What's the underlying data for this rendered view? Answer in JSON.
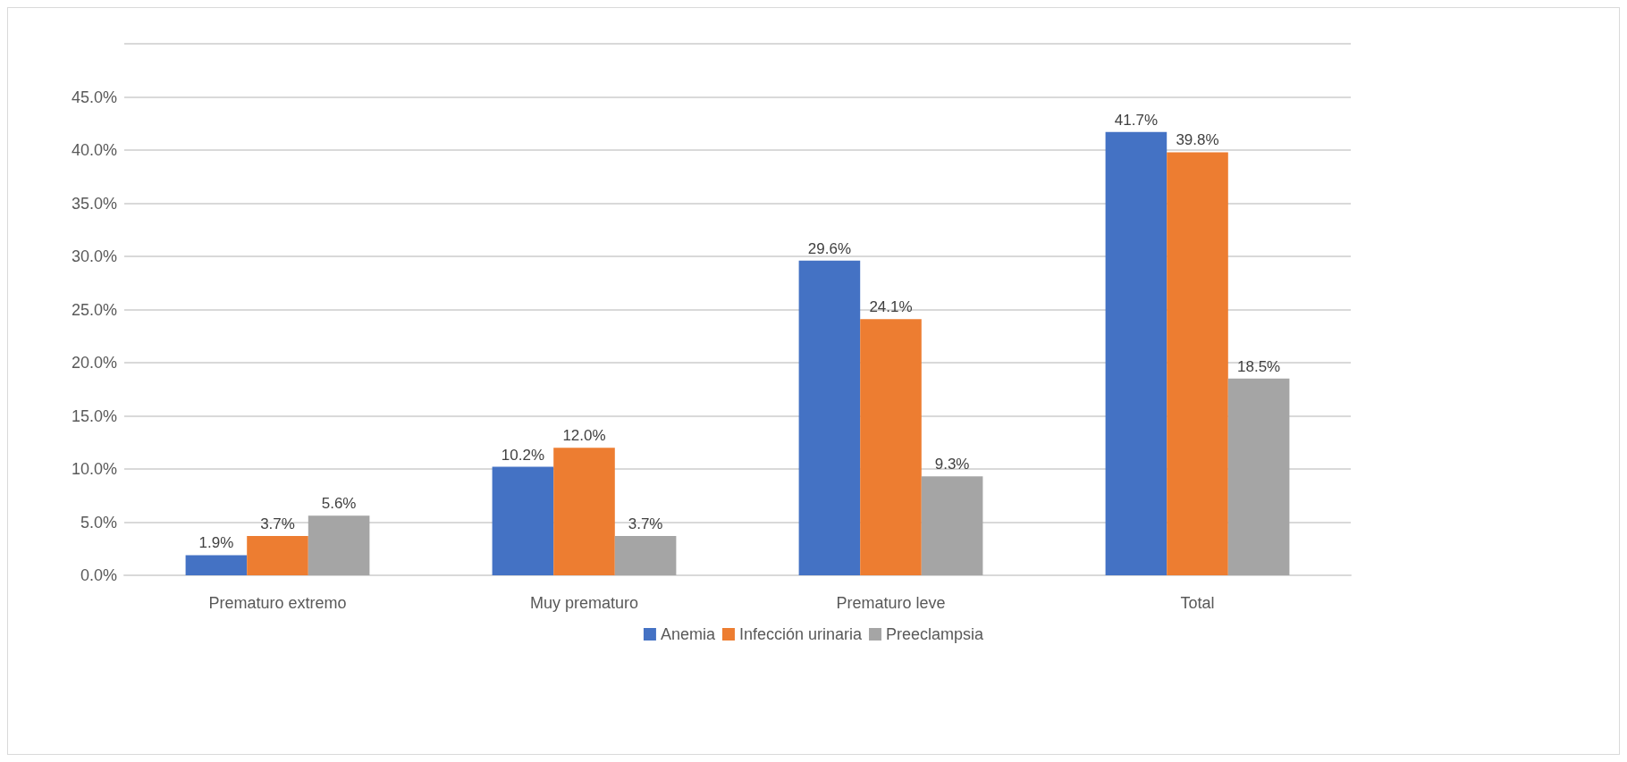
{
  "chart_data": {
    "type": "bar",
    "categories": [
      "Prematuro extremo",
      "Muy prematuro",
      "Prematuro leve",
      "Total"
    ],
    "series": [
      {
        "name": "Anemia",
        "color": "#4472c4",
        "values": [
          1.9,
          10.2,
          29.6,
          41.7
        ],
        "value_labels": [
          "1.9%",
          "10.2%",
          "29.6%",
          "41.7%"
        ]
      },
      {
        "name": "Infección urinaria",
        "color": "#ed7d31",
        "values": [
          3.7,
          12.0,
          24.1,
          39.8
        ],
        "value_labels": [
          "3.7%",
          "12.0%",
          "24.1%",
          "39.8%"
        ]
      },
      {
        "name": "Preeclampsia",
        "color": "#a5a5a5",
        "values": [
          5.6,
          3.7,
          9.3,
          18.5
        ],
        "value_labels": [
          "5.6%",
          "3.7%",
          "9.3%",
          "18.5%"
        ]
      }
    ],
    "ylim": [
      0,
      50
    ],
    "yticks": [
      {
        "value": 0,
        "label": "0.0%"
      },
      {
        "value": 5,
        "label": "5.0%"
      },
      {
        "value": 10,
        "label": "10.0%"
      },
      {
        "value": 15,
        "label": "15.0%"
      },
      {
        "value": 20,
        "label": "20.0%"
      },
      {
        "value": 25,
        "label": "25.0%"
      },
      {
        "value": 30,
        "label": "30.0%"
      },
      {
        "value": 35,
        "label": "35.0%"
      },
      {
        "value": 40,
        "label": "40.0%"
      },
      {
        "value": 45,
        "label": "45.0%"
      },
      {
        "value": 50,
        "label": null
      }
    ],
    "grid": true,
    "legend": "bottom"
  }
}
